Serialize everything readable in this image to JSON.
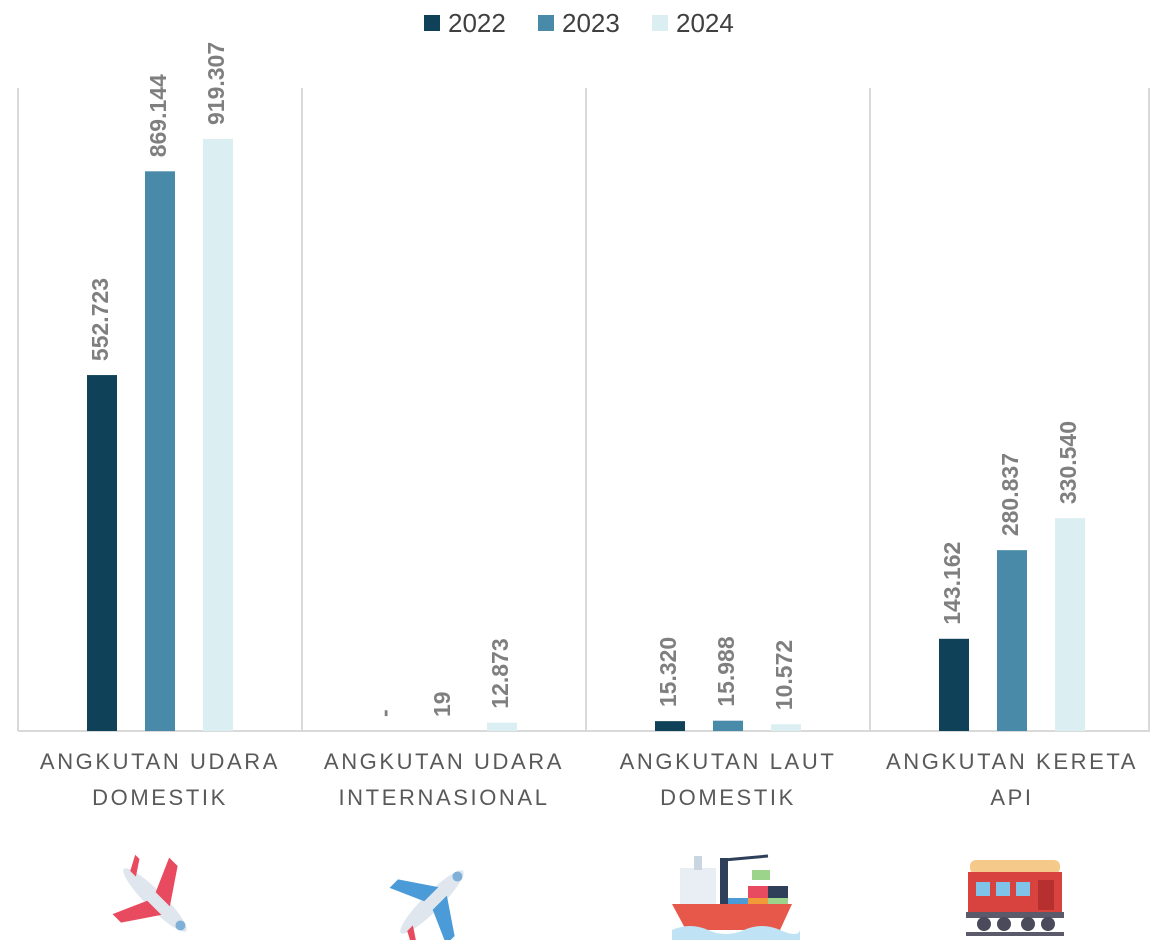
{
  "chart_data": {
    "type": "bar",
    "categories": [
      "ANGKUTAN UDARA DOMESTIK",
      "ANGKUTAN UDARA INTERNASIONAL",
      "ANGKUTAN LAUT DOMESTIK",
      "ANGKUTAN KERETA API"
    ],
    "series": [
      {
        "name": "2022",
        "color": "#0f4258",
        "values": [
          552723,
          0,
          15320,
          143162
        ],
        "value_labels": [
          "552.723",
          "-",
          "15.320",
          "143.162"
        ]
      },
      {
        "name": "2023",
        "color": "#4a8aa9",
        "values": [
          869144,
          19,
          15988,
          280837
        ],
        "value_labels": [
          "869.144",
          "19",
          "15.988",
          "280.837"
        ]
      },
      {
        "name": "2024",
        "color": "#dbeff3",
        "values": [
          919307,
          12873,
          10572,
          330540
        ],
        "value_labels": [
          "919.307",
          "12.873",
          "10.572",
          "330.540"
        ]
      }
    ],
    "legend": "top"
  }
}
